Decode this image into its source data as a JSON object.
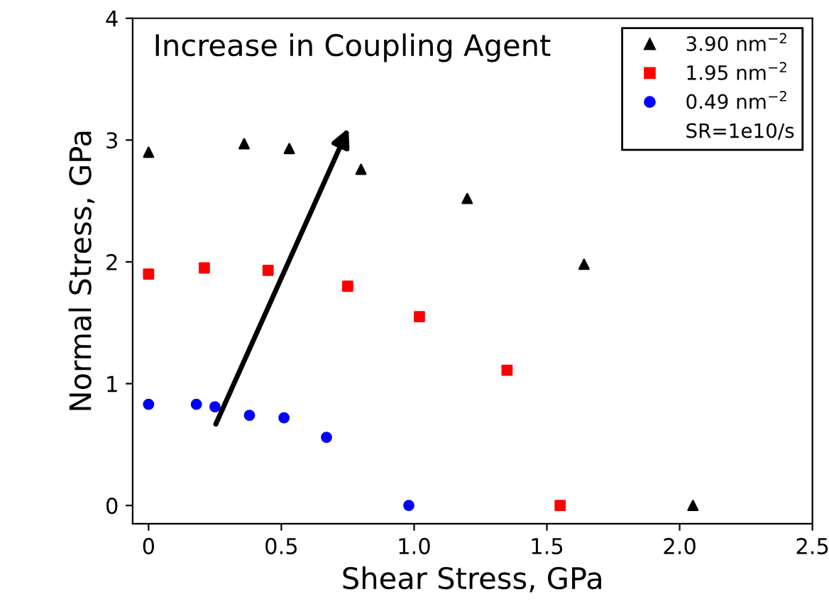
{
  "chart_data": {
    "type": "scatter",
    "xlabel": "Shear Stress, GPa",
    "ylabel": "Normal Stress, GPa",
    "xlim": [
      -0.06,
      2.5
    ],
    "xticks": [
      {
        "value": 0,
        "label": "0"
      },
      0.5,
      {
        "value": 1,
        "label": "1.0"
      },
      1.5,
      {
        "value": 2,
        "label": "2.0"
      },
      2.5
    ],
    "ylim": [
      -0.15,
      4
    ],
    "yticks": [
      0,
      1,
      2,
      3,
      4
    ],
    "grid": false,
    "legend": "top right",
    "annotations": [
      "Increase in Coupling Agent",
      "SR=1e10/s"
    ],
    "series": [
      {
        "name": "3.90 nm$^{−2}$",
        "color": "#000000",
        "marker": "triangle",
        "x": [
          0,
          0.36,
          0.53,
          0.8,
          1.2,
          1.64,
          2.05
        ],
        "values": [
          2.9,
          2.97,
          2.93,
          2.76,
          2.52,
          1.98,
          0
        ]
      },
      {
        "name": "1.95 nm$^{−2}$",
        "color": "#ff0000",
        "marker": "square",
        "x": [
          0,
          0.21,
          0.45,
          0.75,
          1.02,
          1.35,
          1.55
        ],
        "values": [
          1.9,
          1.95,
          1.93,
          1.8,
          1.55,
          1.11,
          0
        ]
      },
      {
        "name": "0.49 nm$^{−2}$",
        "color": "#0000ff",
        "marker": "circle",
        "x": [
          0,
          0.18,
          0.25,
          0.38,
          0.51,
          0.67,
          0.98
        ],
        "values": [
          0.83,
          0.83,
          0.81,
          0.74,
          0.72,
          0.56,
          0
        ]
      }
    ]
  }
}
